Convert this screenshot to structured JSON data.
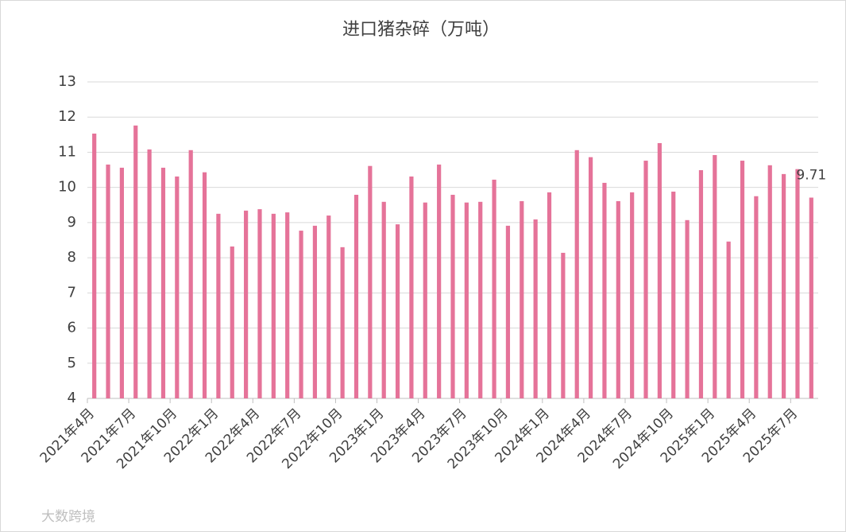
{
  "chart_data": {
    "type": "bar",
    "title": "进口猪杂碎（万吨）",
    "categories": [
      "2021年4月",
      null,
      null,
      "2021年7月",
      null,
      null,
      "2021年10月",
      null,
      null,
      "2022年1月",
      null,
      null,
      "2022年4月",
      null,
      null,
      "2022年7月",
      null,
      null,
      "2022年10月",
      null,
      null,
      "2023年1月",
      null,
      null,
      "2023年4月",
      null,
      null,
      "2023年7月",
      null,
      null,
      "2023年10月",
      null,
      null,
      "2024年1月",
      null,
      null,
      "2024年4月",
      null,
      null,
      "2024年7月",
      null,
      null,
      "2024年10月",
      null,
      null,
      "2025年1月",
      null,
      null,
      "2025年4月",
      null,
      null,
      "2025年7月",
      null
    ],
    "values": [
      11.53,
      10.65,
      10.56,
      11.76,
      11.08,
      10.56,
      10.31,
      11.06,
      10.43,
      9.25,
      8.32,
      9.34,
      9.38,
      9.25,
      9.29,
      8.77,
      8.91,
      9.2,
      8.3,
      9.79,
      10.61,
      9.59,
      8.95,
      10.31,
      9.57,
      10.65,
      9.79,
      9.57,
      9.59,
      10.22,
      8.91,
      9.61,
      9.09,
      9.86,
      8.14,
      11.06,
      10.86,
      10.13,
      9.61,
      9.86,
      10.76,
      11.26,
      9.88,
      9.07,
      10.49,
      10.92,
      8.46,
      10.76,
      9.75,
      10.63,
      10.38,
      10.52,
      9.71
    ],
    "value_labels": [
      null,
      null,
      null,
      null,
      null,
      null,
      null,
      null,
      null,
      null,
      null,
      null,
      null,
      null,
      null,
      null,
      null,
      null,
      null,
      null,
      null,
      null,
      null,
      null,
      null,
      null,
      null,
      null,
      null,
      null,
      null,
      null,
      null,
      null,
      null,
      null,
      null,
      null,
      null,
      null,
      null,
      null,
      null,
      null,
      null,
      null,
      null,
      null,
      null,
      null,
      null,
      null,
      "9.71"
    ],
    "color": "#e57399",
    "ylim": [
      4,
      13
    ],
    "yticks": [
      4,
      5,
      6,
      7,
      8,
      9,
      10,
      11,
      12,
      13
    ],
    "grid": true
  },
  "watermark": "大数跨境"
}
